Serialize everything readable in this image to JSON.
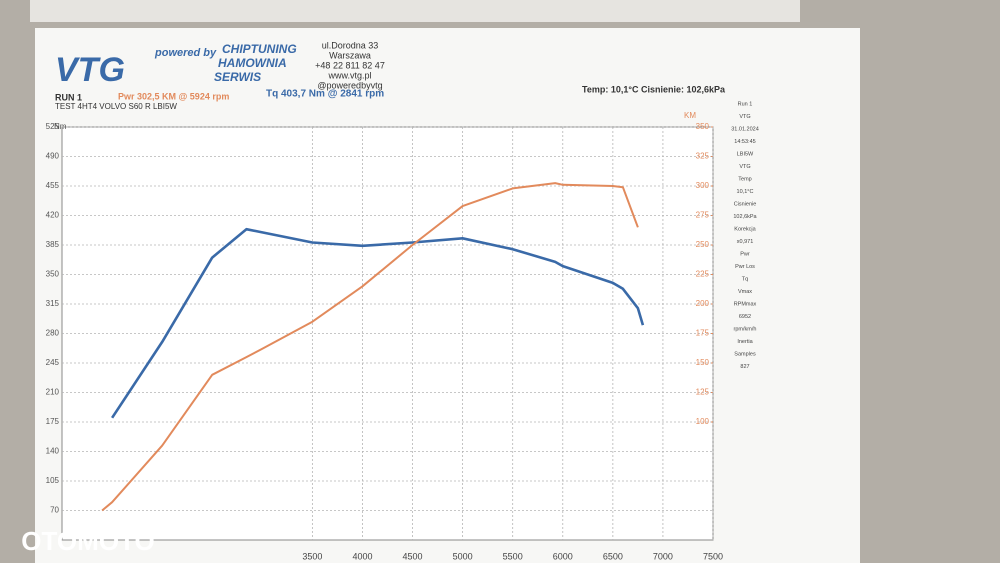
{
  "header": {
    "tagline": "powered by",
    "logo": "VTG",
    "services": [
      "CHIPTUNING",
      "HAMOWNIA",
      "SERWIS"
    ],
    "address": [
      "ul.Dorodna 33",
      "Warszawa",
      "+48 22 811 82 47",
      "www.vtg.pl",
      "@poweredbyvtg"
    ],
    "run": "RUN 1",
    "pwr": "Pwr  302,5 KM @ 5924 rpm",
    "tq": "Tq 403,7 Nm @ 2841 rpm",
    "test": "TEST 4HT4 VOLVO S60 R LBI5W",
    "conditions": "Temp: 10,1°C   Cisnienie: 102,6kPa"
  },
  "sidebar": [
    "Run 1",
    "VTG",
    "31.01.2024",
    "14:53:45",
    "LBI5W",
    "VTG",
    "Temp",
    "10,1°C",
    "Cisnienie",
    "102,6kPa",
    "Korekcja",
    "x0,971",
    "Pwr",
    "Pwr Los",
    "Tq",
    "Vmax",
    "RPMmax",
    "6952",
    "rpm/km/h",
    "Inertia",
    "Samples",
    "827"
  ],
  "watermark": "OTOMOTO",
  "chart_data": {
    "type": "line",
    "y_label": "Nm",
    "y2_label": "KM",
    "x": [
      1400,
      1500,
      2000,
      2500,
      2841,
      3000,
      3500,
      4000,
      4500,
      5000,
      5500,
      5924,
      6000,
      6500,
      6600,
      6750,
      6800
    ],
    "xlim": [
      1000,
      7500
    ],
    "xticks": [
      3500,
      4000,
      4500,
      5000,
      5500,
      6000,
      6500,
      7000,
      7500
    ],
    "ylim": [
      35,
      525
    ],
    "yticks": [
      70,
      105,
      140,
      175,
      210,
      245,
      280,
      315,
      350,
      385,
      420,
      455,
      490,
      525
    ],
    "y2lim": [
      0,
      350
    ],
    "y2ticks": [
      100,
      125,
      150,
      175,
      200,
      225,
      250,
      275,
      300,
      325,
      350
    ],
    "grid": true,
    "series": [
      {
        "name": "Tq",
        "color": "#3a6aa8",
        "values": [
          null,
          180,
          270,
          370,
          403.7,
          400,
          388,
          384,
          388,
          393,
          380,
          365,
          360,
          340,
          333,
          310,
          290
        ]
      },
      {
        "name": "Pwr",
        "color": "#e28a5c",
        "axis": "y2",
        "values": [
          25,
          32,
          80,
          140,
          155,
          162,
          185,
          215,
          250,
          283,
          298,
          302.5,
          301,
          300,
          299,
          265,
          null
        ]
      }
    ]
  }
}
